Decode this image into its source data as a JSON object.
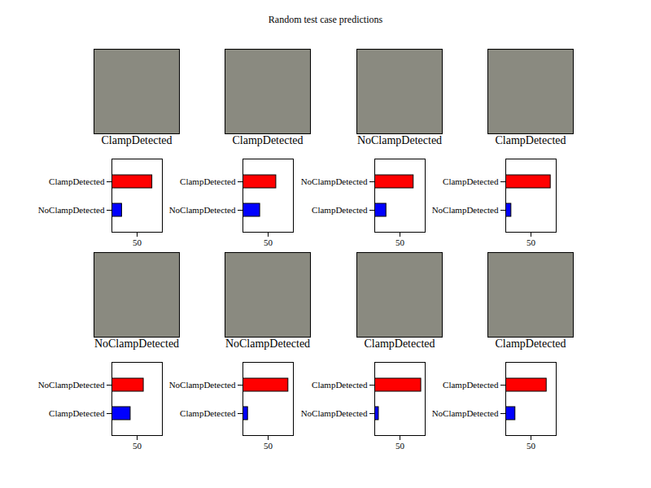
{
  "title": "Random test case predictions",
  "chart_data": [
    {
      "type": "bar",
      "orientation": "horizontal",
      "title": "ClampDetected",
      "categories": [
        "ClampDetected",
        "NoClampDetected"
      ],
      "values": [
        80,
        20
      ],
      "colors": [
        "red",
        "blue"
      ],
      "xlim": [
        0,
        100
      ],
      "xticks": [
        50
      ]
    },
    {
      "type": "bar",
      "orientation": "horizontal",
      "title": "ClampDetected",
      "categories": [
        "ClampDetected",
        "NoClampDetected"
      ],
      "values": [
        66,
        34
      ],
      "colors": [
        "red",
        "blue"
      ],
      "xlim": [
        0,
        100
      ],
      "xticks": [
        50
      ]
    },
    {
      "type": "bar",
      "orientation": "horizontal",
      "title": "NoClampDetected",
      "categories": [
        "NoClampDetected",
        "ClampDetected"
      ],
      "values": [
        77,
        23
      ],
      "colors": [
        "red",
        "blue"
      ],
      "xlim": [
        0,
        100
      ],
      "xticks": [
        50
      ]
    },
    {
      "type": "bar",
      "orientation": "horizontal",
      "title": "ClampDetected",
      "categories": [
        "ClampDetected",
        "NoClampDetected"
      ],
      "values": [
        89,
        11
      ],
      "colors": [
        "red",
        "blue"
      ],
      "xlim": [
        0,
        100
      ],
      "xticks": [
        50
      ]
    },
    {
      "type": "bar",
      "orientation": "horizontal",
      "title": "NoClampDetected",
      "categories": [
        "NoClampDetected",
        "ClampDetected"
      ],
      "values": [
        63,
        37
      ],
      "colors": [
        "red",
        "blue"
      ],
      "xlim": [
        0,
        100
      ],
      "xticks": [
        50
      ]
    },
    {
      "type": "bar",
      "orientation": "horizontal",
      "title": "NoClampDetected",
      "categories": [
        "NoClampDetected",
        "ClampDetected"
      ],
      "values": [
        90,
        10
      ],
      "colors": [
        "red",
        "blue"
      ],
      "xlim": [
        0,
        100
      ],
      "xticks": [
        50
      ]
    },
    {
      "type": "bar",
      "orientation": "horizontal",
      "title": "ClampDetected",
      "categories": [
        "ClampDetected",
        "NoClampDetected"
      ],
      "values": [
        92,
        8
      ],
      "colors": [
        "red",
        "blue"
      ],
      "xlim": [
        0,
        100
      ],
      "xticks": [
        50
      ]
    },
    {
      "type": "bar",
      "orientation": "horizontal",
      "title": "ClampDetected",
      "categories": [
        "ClampDetected",
        "NoClampDetected"
      ],
      "values": [
        81,
        19
      ],
      "colors": [
        "red",
        "blue"
      ],
      "xlim": [
        0,
        100
      ],
      "xticks": [
        50
      ]
    }
  ]
}
